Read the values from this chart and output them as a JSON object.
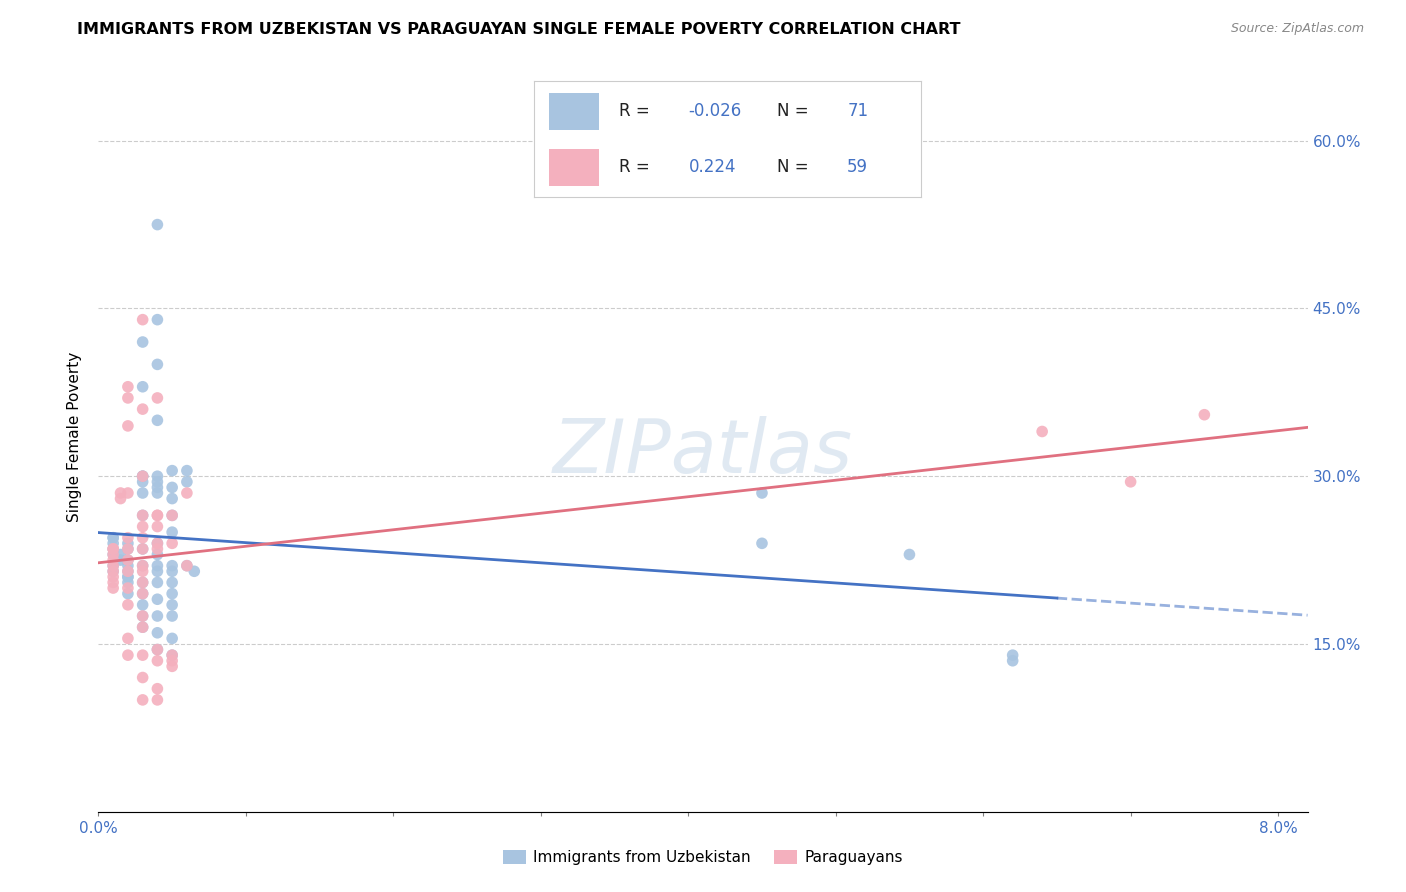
{
  "title": "IMMIGRANTS FROM UZBEKISTAN VS PARAGUAYAN SINGLE FEMALE POVERTY CORRELATION CHART",
  "source": "Source: ZipAtlas.com",
  "ylabel": "Single Female Poverty",
  "y_ticks": [
    0.15,
    0.3,
    0.45,
    0.6
  ],
  "y_tick_labels": [
    "15.0%",
    "30.0%",
    "45.0%",
    "60.0%"
  ],
  "xlim": [
    0.0,
    0.082
  ],
  "ylim": [
    0.0,
    0.67
  ],
  "blue_R": -0.026,
  "blue_N": 71,
  "pink_R": 0.224,
  "pink_N": 59,
  "blue_color": "#a8c4e0",
  "pink_color": "#f4b0be",
  "blue_line_color": "#4472c4",
  "pink_line_color": "#e07080",
  "watermark": "ZIPatlas",
  "footer_blue": "Immigrants from Uzbekistan",
  "footer_pink": "Paraguayans",
  "blue_points": [
    [
      0.001,
      0.245
    ],
    [
      0.001,
      0.245
    ],
    [
      0.001,
      0.215
    ],
    [
      0.001,
      0.23
    ],
    [
      0.001,
      0.22
    ],
    [
      0.001,
      0.24
    ],
    [
      0.001,
      0.235
    ],
    [
      0.0015,
      0.23
    ],
    [
      0.0015,
      0.225
    ],
    [
      0.002,
      0.24
    ],
    [
      0.002,
      0.225
    ],
    [
      0.002,
      0.22
    ],
    [
      0.002,
      0.215
    ],
    [
      0.002,
      0.21
    ],
    [
      0.002,
      0.205
    ],
    [
      0.002,
      0.235
    ],
    [
      0.002,
      0.21
    ],
    [
      0.002,
      0.195
    ],
    [
      0.003,
      0.42
    ],
    [
      0.003,
      0.38
    ],
    [
      0.003,
      0.3
    ],
    [
      0.003,
      0.295
    ],
    [
      0.003,
      0.3
    ],
    [
      0.003,
      0.285
    ],
    [
      0.003,
      0.265
    ],
    [
      0.003,
      0.235
    ],
    [
      0.003,
      0.22
    ],
    [
      0.003,
      0.205
    ],
    [
      0.003,
      0.195
    ],
    [
      0.003,
      0.185
    ],
    [
      0.003,
      0.175
    ],
    [
      0.003,
      0.165
    ],
    [
      0.004,
      0.525
    ],
    [
      0.004,
      0.44
    ],
    [
      0.004,
      0.4
    ],
    [
      0.004,
      0.35
    ],
    [
      0.004,
      0.3
    ],
    [
      0.004,
      0.295
    ],
    [
      0.004,
      0.29
    ],
    [
      0.004,
      0.285
    ],
    [
      0.004,
      0.24
    ],
    [
      0.004,
      0.23
    ],
    [
      0.004,
      0.22
    ],
    [
      0.004,
      0.215
    ],
    [
      0.004,
      0.205
    ],
    [
      0.004,
      0.19
    ],
    [
      0.004,
      0.175
    ],
    [
      0.004,
      0.16
    ],
    [
      0.004,
      0.145
    ],
    [
      0.005,
      0.305
    ],
    [
      0.005,
      0.29
    ],
    [
      0.005,
      0.28
    ],
    [
      0.005,
      0.265
    ],
    [
      0.005,
      0.25
    ],
    [
      0.005,
      0.22
    ],
    [
      0.005,
      0.215
    ],
    [
      0.005,
      0.205
    ],
    [
      0.005,
      0.195
    ],
    [
      0.005,
      0.185
    ],
    [
      0.005,
      0.175
    ],
    [
      0.005,
      0.155
    ],
    [
      0.005,
      0.14
    ],
    [
      0.006,
      0.305
    ],
    [
      0.006,
      0.295
    ],
    [
      0.006,
      0.22
    ],
    [
      0.0065,
      0.215
    ],
    [
      0.045,
      0.285
    ],
    [
      0.045,
      0.24
    ],
    [
      0.055,
      0.23
    ],
    [
      0.062,
      0.14
    ],
    [
      0.062,
      0.135
    ]
  ],
  "pink_points": [
    [
      0.001,
      0.235
    ],
    [
      0.001,
      0.225
    ],
    [
      0.001,
      0.22
    ],
    [
      0.001,
      0.215
    ],
    [
      0.001,
      0.21
    ],
    [
      0.001,
      0.205
    ],
    [
      0.001,
      0.2
    ],
    [
      0.0015,
      0.285
    ],
    [
      0.0015,
      0.28
    ],
    [
      0.002,
      0.38
    ],
    [
      0.002,
      0.37
    ],
    [
      0.002,
      0.345
    ],
    [
      0.002,
      0.285
    ],
    [
      0.002,
      0.245
    ],
    [
      0.002,
      0.235
    ],
    [
      0.002,
      0.225
    ],
    [
      0.002,
      0.215
    ],
    [
      0.002,
      0.2
    ],
    [
      0.002,
      0.185
    ],
    [
      0.002,
      0.155
    ],
    [
      0.002,
      0.14
    ],
    [
      0.003,
      0.44
    ],
    [
      0.003,
      0.36
    ],
    [
      0.003,
      0.3
    ],
    [
      0.003,
      0.265
    ],
    [
      0.003,
      0.255
    ],
    [
      0.003,
      0.245
    ],
    [
      0.003,
      0.235
    ],
    [
      0.003,
      0.22
    ],
    [
      0.003,
      0.215
    ],
    [
      0.003,
      0.205
    ],
    [
      0.003,
      0.195
    ],
    [
      0.003,
      0.175
    ],
    [
      0.003,
      0.165
    ],
    [
      0.003,
      0.14
    ],
    [
      0.003,
      0.12
    ],
    [
      0.003,
      0.1
    ],
    [
      0.004,
      0.37
    ],
    [
      0.004,
      0.265
    ],
    [
      0.004,
      0.265
    ],
    [
      0.004,
      0.255
    ],
    [
      0.004,
      0.24
    ],
    [
      0.004,
      0.235
    ],
    [
      0.004,
      0.145
    ],
    [
      0.004,
      0.135
    ],
    [
      0.004,
      0.11
    ],
    [
      0.004,
      0.1
    ],
    [
      0.005,
      0.265
    ],
    [
      0.005,
      0.24
    ],
    [
      0.005,
      0.14
    ],
    [
      0.005,
      0.135
    ],
    [
      0.005,
      0.13
    ],
    [
      0.006,
      0.285
    ],
    [
      0.006,
      0.22
    ],
    [
      0.064,
      0.34
    ],
    [
      0.07,
      0.295
    ],
    [
      0.075,
      0.355
    ],
    [
      0.001,
      0.235
    ],
    [
      0.001,
      0.23
    ]
  ]
}
